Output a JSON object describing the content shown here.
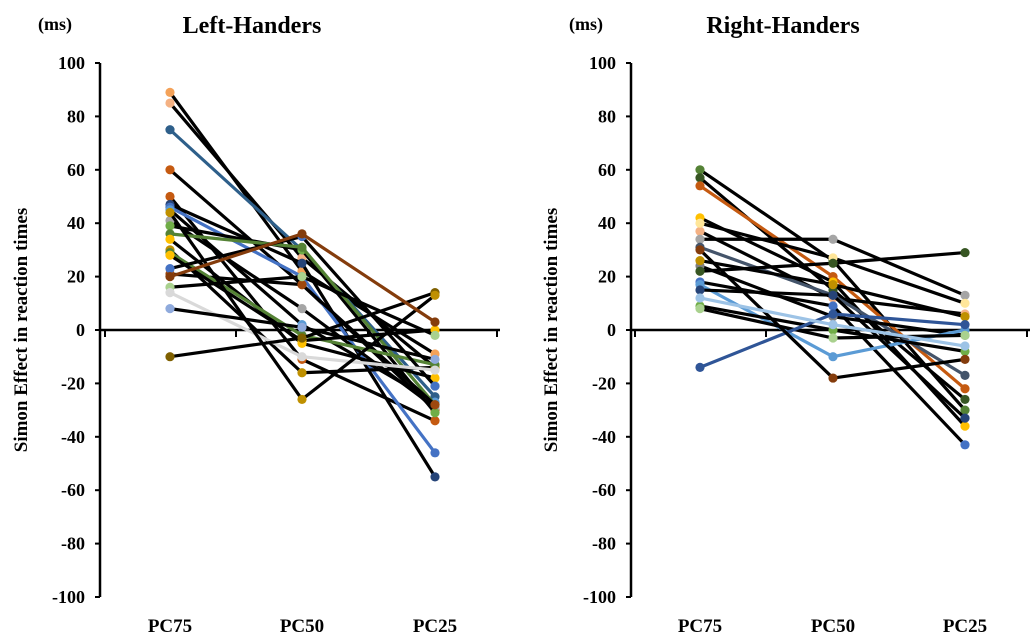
{
  "chart_data": [
    {
      "type": "line",
      "title": "Left-Handers",
      "unit_label": "(ms)",
      "ylabel": "Simon Effect in reaction times",
      "xlabel": "",
      "categories": [
        "PC75",
        "PC50",
        "PC25"
      ],
      "ylim": [
        -100,
        100
      ],
      "yticks": [
        100,
        80,
        60,
        40,
        20,
        0,
        -20,
        -40,
        -60,
        -80,
        -100
      ],
      "grid": false,
      "legend": "none",
      "series": [
        {
          "color": "#f4a259",
          "values": [
            89,
            22,
            -9
          ]
        },
        {
          "color": "#f4b183",
          "values": [
            85,
            27,
            -14
          ]
        },
        {
          "color": "#2e5f8a",
          "values": [
            75,
            30,
            -25
          ]
        },
        {
          "color": "#c55a11",
          "values": [
            60,
            17,
            -30
          ]
        },
        {
          "color": "#c55a11",
          "values": [
            50,
            -11,
            -34
          ]
        },
        {
          "color": "#264478",
          "values": [
            47,
            25,
            -55
          ]
        },
        {
          "color": "#4472c4",
          "values": [
            46,
            20,
            -46
          ]
        },
        {
          "color": "#5b9bd5",
          "values": [
            45,
            2,
            -27
          ]
        },
        {
          "color": "#a5a5a5",
          "values": [
            41,
            8,
            -29
          ]
        },
        {
          "color": "#70ad47",
          "values": [
            39,
            30,
            -31
          ]
        },
        {
          "color": "#548235",
          "values": [
            36,
            31,
            -28
          ]
        },
        {
          "color": "#ffc000",
          "values": [
            34,
            -5,
            -18
          ]
        },
        {
          "color": "#9e480e",
          "values": [
            21,
            17,
            -28
          ]
        },
        {
          "color": "#bf9000",
          "values": [
            30,
            -16,
            -14
          ]
        },
        {
          "color": "#548235",
          "values": [
            29,
            -2,
            -13
          ]
        },
        {
          "color": "#ffc000",
          "values": [
            28,
            -4,
            0
          ]
        },
        {
          "color": "#4472c4",
          "values": [
            23,
            35,
            -21
          ]
        },
        {
          "color": "#a9d18e",
          "values": [
            16,
            20,
            -2
          ]
        },
        {
          "color": "#d9d9d9",
          "values": [
            14,
            -10,
            -15
          ]
        },
        {
          "color": "#8faadc",
          "values": [
            8,
            1,
            -11
          ]
        },
        {
          "color": "#7f6000",
          "values": [
            -10,
            -3,
            14
          ]
        },
        {
          "color": "#bf9000",
          "values": [
            44,
            -26,
            13
          ]
        },
        {
          "color": "#843c0c",
          "values": [
            20,
            36,
            3
          ]
        }
      ]
    },
    {
      "type": "line",
      "title": "Right-Handers",
      "unit_label": "(ms)",
      "ylabel": "Simon Effect in reaction times",
      "xlabel": "",
      "categories": [
        "PC75",
        "PC50",
        "PC25"
      ],
      "ylim": [
        -100,
        100
      ],
      "yticks": [
        100,
        80,
        60,
        40,
        20,
        0,
        -20,
        -40,
        -60,
        -80,
        -100
      ],
      "grid": false,
      "legend": "none",
      "series": [
        {
          "color": "#548235",
          "values": [
            60,
            26,
            -30
          ]
        },
        {
          "color": "#375623",
          "values": [
            57,
            15,
            -26
          ]
        },
        {
          "color": "#c55a11",
          "values": [
            54,
            20,
            -22
          ]
        },
        {
          "color": "#ffc000",
          "values": [
            42,
            18,
            -36
          ]
        },
        {
          "color": "#f4b183",
          "values": [
            37,
            12,
            6
          ]
        },
        {
          "color": "#a5a5a5",
          "values": [
            34,
            34,
            13
          ]
        },
        {
          "color": "#44546a",
          "values": [
            31,
            13,
            -17
          ]
        },
        {
          "color": "#7f7f7f",
          "values": [
            24,
            5,
            -2
          ]
        },
        {
          "color": "#bf9000",
          "values": [
            26,
            17,
            5
          ]
        },
        {
          "color": "#4472c4",
          "values": [
            18,
            9,
            -43
          ]
        },
        {
          "color": "#5b9bd5",
          "values": [
            17,
            -10,
            0
          ]
        },
        {
          "color": "#264478",
          "values": [
            15,
            13,
            -33
          ]
        },
        {
          "color": "#70ad47",
          "values": [
            9,
            0,
            -8
          ]
        },
        {
          "color": "#a9d18e",
          "values": [
            8,
            -3,
            -2
          ]
        },
        {
          "color": "#2f5597",
          "values": [
            -14,
            6,
            2
          ]
        },
        {
          "color": "#843c0c",
          "values": [
            30,
            -18,
            -11
          ]
        },
        {
          "color": "#ffe699",
          "values": [
            40,
            27,
            10
          ]
        },
        {
          "color": "#375623",
          "values": [
            22,
            25,
            29
          ]
        },
        {
          "color": "#9dc3e6",
          "values": [
            12,
            2,
            -6
          ]
        }
      ]
    }
  ]
}
